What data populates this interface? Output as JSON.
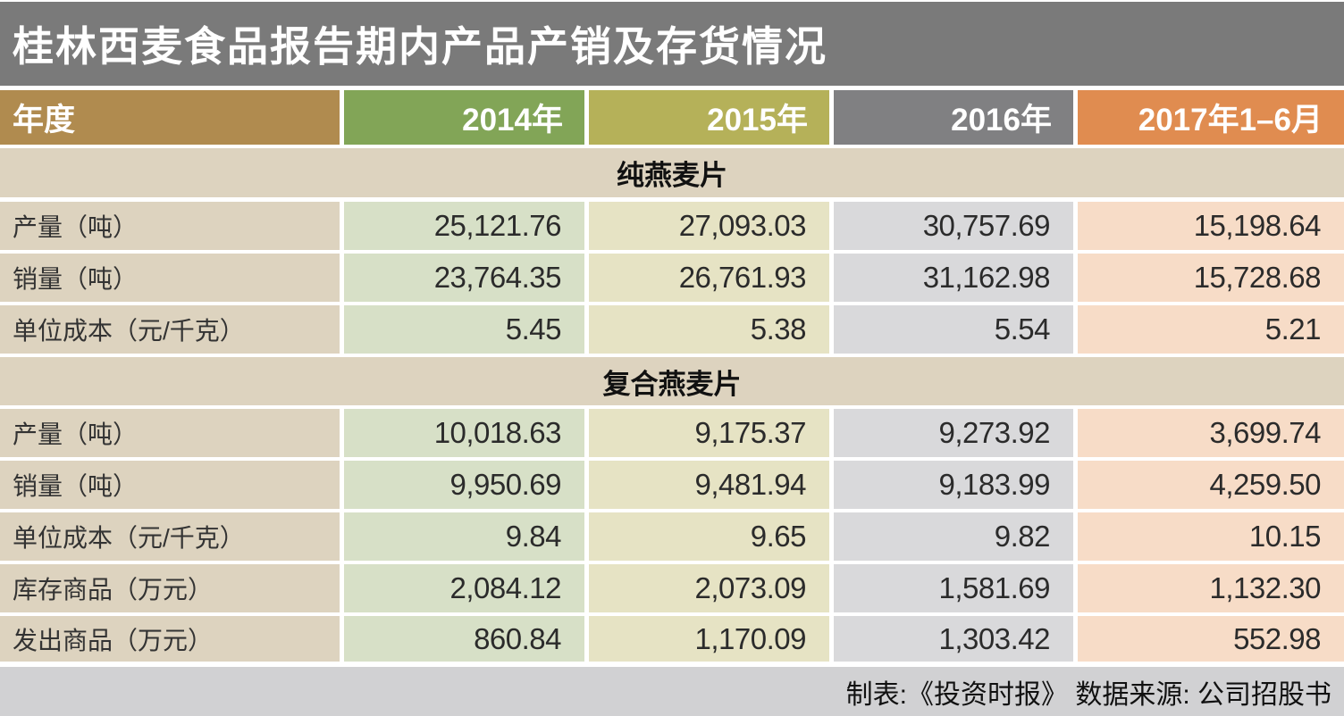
{
  "title": "桂林西麦食品报告期内产品产销及存货情况",
  "header": {
    "label": "年度",
    "label_color": "#B08B4F",
    "columns": [
      {
        "label": "2014年",
        "header_color": "#82A557",
        "cell_color": "#D7E0C7"
      },
      {
        "label": "2015年",
        "header_color": "#B5B159",
        "cell_color": "#E6E3C4"
      },
      {
        "label": "2016年",
        "header_color": "#808082",
        "cell_color": "#D9D9DB"
      },
      {
        "label": "2017年1–6月",
        "header_color": "#E08C50",
        "cell_color": "#F7DCC7"
      }
    ]
  },
  "table": {
    "sections": [
      {
        "name": "纯燕麦片",
        "rows": [
          {
            "label": "产量（吨）",
            "values": [
              "25,121.76",
              "27,093.03",
              "30,757.69",
              "15,198.64"
            ]
          },
          {
            "label": "销量（吨）",
            "values": [
              "23,764.35",
              "26,761.93",
              "31,162.98",
              "15,728.68"
            ]
          },
          {
            "label": "单位成本（元/千克）",
            "values": [
              "5.45",
              "5.38",
              "5.54",
              "5.21"
            ]
          }
        ]
      },
      {
        "name": "复合燕麦片",
        "rows": [
          {
            "label": "产量（吨）",
            "values": [
              "10,018.63",
              "9,175.37",
              "9,273.92",
              "3,699.74"
            ]
          },
          {
            "label": "销量（吨）",
            "values": [
              "9,950.69",
              "9,481.94",
              "9,183.99",
              "4,259.50"
            ]
          },
          {
            "label": "单位成本（元/千克）",
            "values": [
              "9.84",
              "9.65",
              "9.82",
              "10.15"
            ]
          },
          {
            "label": "库存商品（万元）",
            "values": [
              "2,084.12",
              "2,073.09",
              "1,581.69",
              "1,132.30"
            ]
          },
          {
            "label": "发出商品（万元）",
            "values": [
              "860.84",
              "1,170.09",
              "1,303.42",
              "552.98"
            ]
          }
        ]
      }
    ]
  },
  "footer": {
    "text": "制表:《投资时报》  数据来源: 公司招股书"
  },
  "colors": {
    "title_bar": "#7A7A7A",
    "title_text": "#FFFFFF",
    "label_column": "#DDD3BF",
    "section_row": "#DDD3BF",
    "footer_bar": "#D1D1D3",
    "gap": "#FFFFFF",
    "number_text": "#2B2B2B"
  },
  "chart_data": {
    "type": "table",
    "title": "桂林西麦食品报告期内产品产销及存货情况",
    "columns": [
      "年度",
      "2014年",
      "2015年",
      "2016年",
      "2017年1–6月"
    ],
    "sections": [
      {
        "group": "纯燕麦片",
        "rows": [
          {
            "metric": "产量（吨）",
            "values": [
              25121.76,
              27093.03,
              30757.69,
              15198.64
            ]
          },
          {
            "metric": "销量（吨）",
            "values": [
              23764.35,
              26761.93,
              31162.98,
              15728.68
            ]
          },
          {
            "metric": "单位成本（元/千克）",
            "values": [
              5.45,
              5.38,
              5.54,
              5.21
            ]
          }
        ]
      },
      {
        "group": "复合燕麦片",
        "rows": [
          {
            "metric": "产量（吨）",
            "values": [
              10018.63,
              9175.37,
              9273.92,
              3699.74
            ]
          },
          {
            "metric": "销量（吨）",
            "values": [
              9950.69,
              9481.94,
              9183.99,
              4259.5
            ]
          },
          {
            "metric": "单位成本（元/千克）",
            "values": [
              9.84,
              9.65,
              9.82,
              10.15
            ]
          },
          {
            "metric": "库存商品（万元）",
            "values": [
              2084.12,
              2073.09,
              1581.69,
              1132.3
            ]
          },
          {
            "metric": "发出商品（万元）",
            "values": [
              860.84,
              1170.09,
              1303.42,
              552.98
            ]
          }
        ]
      }
    ],
    "source_note": "制表:《投资时报》  数据来源: 公司招股书"
  }
}
